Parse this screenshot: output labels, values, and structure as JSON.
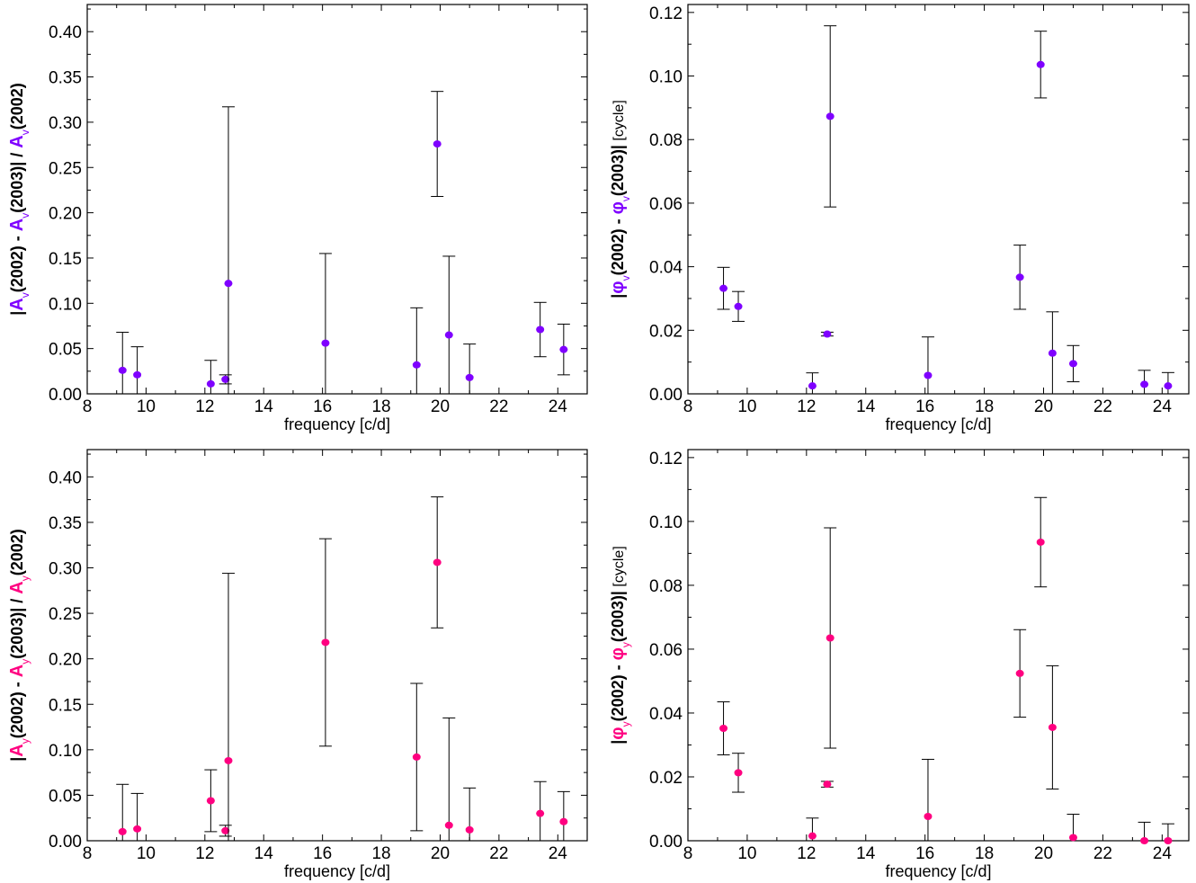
{
  "colors": {
    "series_top": "#7f00ff",
    "series_bottom": "#ff0080",
    "axis": "#000000",
    "errorbar": "#000000"
  },
  "chart_data": [
    {
      "id": "amp_v",
      "type": "scatter",
      "title": "",
      "xlabel": "frequency [c/d]",
      "ylabel_parts": [
        "|",
        "A",
        "v",
        "(2002) - ",
        "A",
        "v",
        "(2003)| / ",
        "A",
        "v",
        "(2002)"
      ],
      "xlim": [
        8,
        25
      ],
      "ylim": [
        0,
        0.43
      ],
      "xticks": [
        "8",
        "10",
        "12",
        "14",
        "16",
        "18",
        "20",
        "22",
        "24"
      ],
      "yticks": [
        "0.00",
        "0.05",
        "0.10",
        "0.15",
        "0.20",
        "0.25",
        "0.30",
        "0.35",
        "0.40"
      ],
      "grid": false,
      "series": [
        {
          "color": "#7f00ff",
          "points": [
            {
              "x": 9.2,
              "y": 0.026,
              "err": 0.042
            },
            {
              "x": 9.7,
              "y": 0.021,
              "err": 0.031
            },
            {
              "x": 12.2,
              "y": 0.011,
              "err": 0.026
            },
            {
              "x": 12.7,
              "y": 0.016,
              "err": 0.005
            },
            {
              "x": 12.8,
              "y": 0.122,
              "err": 0.195
            },
            {
              "x": 16.1,
              "y": 0.056,
              "err": 0.099
            },
            {
              "x": 19.2,
              "y": 0.032,
              "err": 0.063
            },
            {
              "x": 19.9,
              "y": 0.276,
              "err": 0.058
            },
            {
              "x": 20.3,
              "y": 0.065,
              "err": 0.087
            },
            {
              "x": 21.0,
              "y": 0.018,
              "err": 0.037
            },
            {
              "x": 23.4,
              "y": 0.071,
              "err": 0.03
            },
            {
              "x": 24.2,
              "y": 0.049,
              "err": 0.028
            }
          ]
        }
      ]
    },
    {
      "id": "phase_v",
      "type": "scatter",
      "title": "",
      "xlabel": "frequency [c/d]",
      "ylabel_parts": [
        "|",
        "φ",
        "v",
        "(2002) - ",
        "φ",
        "v",
        "(2003)|",
        "  [cycle]"
      ],
      "xlim": [
        8,
        24.9
      ],
      "ylim": [
        0,
        0.1225
      ],
      "xticks": [
        "8",
        "10",
        "12",
        "14",
        "16",
        "18",
        "20",
        "22",
        "24"
      ],
      "yticks": [
        "0.00",
        "0.02",
        "0.04",
        "0.06",
        "0.08",
        "0.10",
        "0.12"
      ],
      "grid": false,
      "series": [
        {
          "color": "#7f00ff",
          "points": [
            {
              "x": 9.2,
              "y": 0.0332,
              "err": 0.0066
            },
            {
              "x": 9.7,
              "y": 0.0275,
              "err": 0.0047
            },
            {
              "x": 12.2,
              "y": 0.0025,
              "err": 0.0041
            },
            {
              "x": 12.7,
              "y": 0.0188,
              "err": 0.0006
            },
            {
              "x": 12.8,
              "y": 0.0873,
              "err": 0.0285
            },
            {
              "x": 16.1,
              "y": 0.0058,
              "err": 0.0121
            },
            {
              "x": 19.2,
              "y": 0.0367,
              "err": 0.0101
            },
            {
              "x": 19.9,
              "y": 0.1036,
              "err": 0.0105
            },
            {
              "x": 20.3,
              "y": 0.0128,
              "err": 0.013
            },
            {
              "x": 21.0,
              "y": 0.0095,
              "err": 0.0057
            },
            {
              "x": 23.4,
              "y": 0.003,
              "err": 0.0044
            },
            {
              "x": 24.2,
              "y": 0.0025,
              "err": 0.0042
            }
          ]
        }
      ]
    },
    {
      "id": "amp_y",
      "type": "scatter",
      "title": "",
      "xlabel": "frequency [c/d]",
      "ylabel_parts": [
        "|",
        "A",
        "y",
        "(2002) - ",
        "A",
        "y",
        "(2003)| / ",
        "A",
        "y",
        "(2002)"
      ],
      "xlim": [
        8,
        25
      ],
      "ylim": [
        0,
        0.43
      ],
      "xticks": [
        "8",
        "10",
        "12",
        "14",
        "16",
        "18",
        "20",
        "22",
        "24"
      ],
      "yticks": [
        "0.00",
        "0.05",
        "0.10",
        "0.15",
        "0.20",
        "0.25",
        "0.30",
        "0.35",
        "0.40"
      ],
      "grid": false,
      "series": [
        {
          "color": "#ff0080",
          "points": [
            {
              "x": 9.2,
              "y": 0.01,
              "err": 0.052
            },
            {
              "x": 9.7,
              "y": 0.013,
              "err": 0.039
            },
            {
              "x": 12.2,
              "y": 0.044,
              "err": 0.034
            },
            {
              "x": 12.7,
              "y": 0.011,
              "err": 0.006
            },
            {
              "x": 12.8,
              "y": 0.088,
              "err": 0.206
            },
            {
              "x": 16.1,
              "y": 0.218,
              "err": 0.114
            },
            {
              "x": 19.2,
              "y": 0.092,
              "err": 0.081
            },
            {
              "x": 19.9,
              "y": 0.306,
              "err": 0.072
            },
            {
              "x": 20.3,
              "y": 0.017,
              "err": 0.118
            },
            {
              "x": 21.0,
              "y": 0.012,
              "err": 0.046
            },
            {
              "x": 23.4,
              "y": 0.03,
              "err": 0.035
            },
            {
              "x": 24.2,
              "y": 0.021,
              "err": 0.033
            }
          ]
        }
      ]
    },
    {
      "id": "phase_y",
      "type": "scatter",
      "title": "",
      "xlabel": "frequency [c/d]",
      "ylabel_parts": [
        "|",
        "φ",
        "y",
        "(2002) - ",
        "φ",
        "y",
        "(2003)|",
        "  [cycle]"
      ],
      "xlim": [
        8,
        24.9
      ],
      "ylim": [
        0,
        0.1225
      ],
      "xticks": [
        "8",
        "10",
        "12",
        "14",
        "16",
        "18",
        "20",
        "22",
        "24"
      ],
      "yticks": [
        "0.00",
        "0.02",
        "0.04",
        "0.06",
        "0.08",
        "0.10",
        "0.12"
      ],
      "grid": false,
      "series": [
        {
          "color": "#ff0080",
          "points": [
            {
              "x": 9.2,
              "y": 0.0352,
              "err": 0.0083
            },
            {
              "x": 9.7,
              "y": 0.0213,
              "err": 0.0061
            },
            {
              "x": 12.2,
              "y": 0.0015,
              "err": 0.0056
            },
            {
              "x": 12.7,
              "y": 0.0177,
              "err": 0.0009
            },
            {
              "x": 12.8,
              "y": 0.0635,
              "err": 0.0345
            },
            {
              "x": 16.1,
              "y": 0.0076,
              "err": 0.0179
            },
            {
              "x": 19.2,
              "y": 0.0524,
              "err": 0.0137
            },
            {
              "x": 19.9,
              "y": 0.0935,
              "err": 0.014
            },
            {
              "x": 20.3,
              "y": 0.0355,
              "err": 0.0193
            },
            {
              "x": 21.0,
              "y": 0.001,
              "err": 0.0073
            },
            {
              "x": 23.4,
              "y": 0.0,
              "err": 0.0058
            },
            {
              "x": 24.2,
              "y": 0.0,
              "err": 0.0053
            }
          ]
        }
      ]
    }
  ]
}
